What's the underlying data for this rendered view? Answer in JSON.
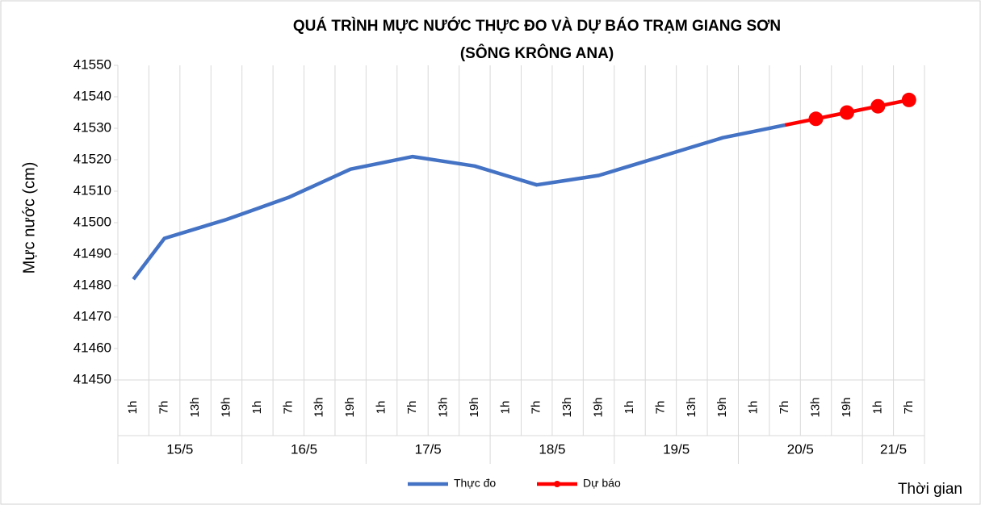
{
  "chart_data": {
    "type": "line",
    "title": "QUÁ TRÌNH MỰC NƯỚC THỰC ĐO VÀ DỰ BÁO TRẠM GIANG SƠN",
    "subtitle": "(SÔNG KRÔNG ANA)",
    "y_label": "Mực nước (cm)",
    "x_label": "Thời gian",
    "categories": [
      "1h",
      "7h",
      "13h",
      "19h",
      "1h",
      "7h",
      "13h",
      "19h",
      "1h",
      "7h",
      "13h",
      "19h",
      "1h",
      "7h",
      "13h",
      "19h",
      "1h",
      "7h",
      "13h",
      "19h",
      "1h",
      "7h",
      "13h",
      "19h",
      "1h",
      "7h"
    ],
    "day_groups": [
      {
        "label": "15/5",
        "count": 4
      },
      {
        "label": "16/5",
        "count": 4
      },
      {
        "label": "17/5",
        "count": 4
      },
      {
        "label": "18/5",
        "count": 4
      },
      {
        "label": "19/5",
        "count": 4
      },
      {
        "label": "20/5",
        "count": 4
      },
      {
        "label": "21/5",
        "count": 2
      }
    ],
    "series": [
      {
        "name": "Thực đo",
        "color": "#4472c4",
        "marker": false,
        "values": [
          41482,
          41495,
          41498,
          41501,
          41504.5,
          41508,
          41512.5,
          41517,
          41519,
          41521,
          41519.5,
          41518,
          41515,
          41512,
          41513.5,
          41515,
          41518,
          41521,
          41524,
          41527,
          41529,
          41531,
          null,
          null,
          null,
          null
        ]
      },
      {
        "name": "Dự báo",
        "color": "#ff0000",
        "marker": true,
        "values": [
          null,
          null,
          null,
          null,
          null,
          null,
          null,
          null,
          null,
          null,
          null,
          null,
          null,
          null,
          null,
          null,
          null,
          null,
          null,
          null,
          null,
          41531,
          41533,
          41535,
          41537,
          41539
        ]
      }
    ],
    "ylim": [
      41450,
      41550
    ],
    "yticks": [
      41450,
      41460,
      41470,
      41480,
      41490,
      41500,
      41510,
      41520,
      41530,
      41540,
      41550
    ],
    "grid": "vertical"
  }
}
